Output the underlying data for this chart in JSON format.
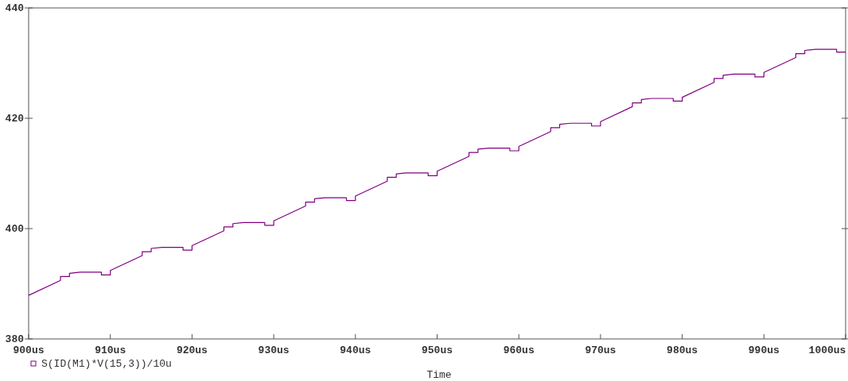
{
  "chart_data": {
    "type": "line",
    "xlabel": "Time",
    "legend": "bottom left",
    "grid": false,
    "line_style": "solid",
    "xlim": [
      900,
      1000
    ],
    "ylim": [
      380,
      440
    ],
    "xticks": [
      {
        "value": 900,
        "label": "900us"
      },
      {
        "value": 910,
        "label": "910us"
      },
      {
        "value": 920,
        "label": "920us"
      },
      {
        "value": 930,
        "label": "930us"
      },
      {
        "value": 940,
        "label": "940us"
      },
      {
        "value": 950,
        "label": "950us"
      },
      {
        "value": 960,
        "label": "960us"
      },
      {
        "value": 970,
        "label": "970us"
      },
      {
        "value": 980,
        "label": "980us"
      },
      {
        "value": 990,
        "label": "990us"
      },
      {
        "value": 1000,
        "label": "1000us"
      }
    ],
    "yticks": [
      380,
      400,
      420,
      440
    ],
    "series": [
      {
        "name": "S(ID(M1)*V(15,3))/10u",
        "color": "#800080",
        "x": [
          900,
          903.9,
          903.9,
          905,
          905,
          906.3,
          908.9,
          908.9,
          910,
          910,
          913.9,
          913.9,
          915,
          915,
          916.3,
          918.9,
          918.9,
          920,
          920,
          923.9,
          923.9,
          925,
          925,
          926.3,
          928.9,
          928.9,
          930,
          930,
          933.9,
          933.9,
          935,
          935,
          936.3,
          938.9,
          938.9,
          940,
          940,
          943.9,
          943.9,
          945,
          945,
          946.3,
          948.9,
          948.9,
          950,
          950,
          953.9,
          953.9,
          955,
          955,
          956.3,
          958.9,
          958.9,
          960,
          960,
          963.9,
          963.9,
          965,
          965,
          966.3,
          968.9,
          968.9,
          970,
          970,
          973.9,
          973.9,
          975,
          975,
          976.3,
          978.9,
          978.9,
          980,
          980,
          983.9,
          983.9,
          985,
          985,
          986.3,
          988.9,
          988.9,
          990,
          990,
          993.9,
          993.9,
          995,
          995,
          996.3,
          998.9,
          998.9,
          1000
        ],
        "values": [
          387.9,
          390.6,
          391.3,
          391.3,
          391.9,
          392.1,
          392.1,
          391.6,
          391.6,
          392.4,
          395.1,
          395.8,
          395.8,
          396.4,
          396.6,
          396.6,
          396.1,
          396.1,
          396.9,
          399.6,
          400.3,
          400.3,
          400.9,
          401.1,
          401.1,
          400.6,
          400.6,
          401.4,
          404.1,
          404.8,
          404.8,
          405.4,
          405.6,
          405.6,
          405.1,
          405.1,
          405.9,
          408.6,
          409.3,
          409.3,
          409.9,
          410.1,
          410.1,
          409.6,
          409.6,
          410.4,
          413.1,
          413.8,
          413.8,
          414.4,
          414.6,
          414.6,
          414.1,
          414.1,
          414.9,
          417.6,
          418.3,
          418.3,
          418.9,
          419.1,
          419.1,
          418.6,
          418.6,
          419.4,
          422.1,
          422.8,
          422.8,
          423.4,
          423.6,
          423.6,
          423.1,
          423.1,
          423.8,
          426.5,
          427.2,
          427.2,
          427.8,
          428.0,
          428.0,
          427.5,
          427.5,
          428.3,
          431.0,
          431.7,
          431.7,
          432.3,
          432.5,
          432.5,
          432.0,
          432.0
        ]
      }
    ]
  }
}
